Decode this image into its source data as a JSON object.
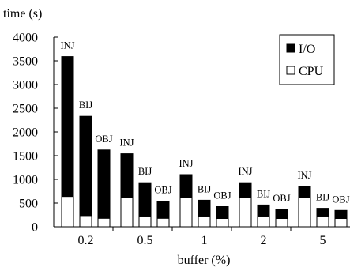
{
  "chart_data": {
    "type": "bar",
    "stacked": true,
    "ylabel": "time (s)",
    "xlabel": "buffer (%)",
    "ylim": [
      0,
      4000
    ],
    "yticks": [
      0,
      500,
      1000,
      1500,
      2000,
      2500,
      3000,
      3500,
      4000
    ],
    "categories": [
      "0.2",
      "0.5",
      "1",
      "2",
      "5"
    ],
    "methods": [
      "INJ",
      "BIJ",
      "OBJ"
    ],
    "series": [
      {
        "name": "CPU",
        "color": "#ffffff",
        "values": [
          [
            640,
            220,
            180
          ],
          [
            620,
            210,
            180
          ],
          [
            620,
            210,
            175
          ],
          [
            620,
            210,
            175
          ],
          [
            620,
            210,
            175
          ]
        ]
      },
      {
        "name": "I/O",
        "color": "#000000",
        "values": [
          [
            2950,
            2110,
            1440
          ],
          [
            920,
            720,
            360
          ],
          [
            480,
            350,
            250
          ],
          [
            310,
            250,
            195
          ],
          [
            230,
            180,
            170
          ]
        ]
      }
    ],
    "legend": {
      "position": "top-right",
      "entries": [
        "I/O",
        "CPU"
      ]
    },
    "grid": false
  }
}
